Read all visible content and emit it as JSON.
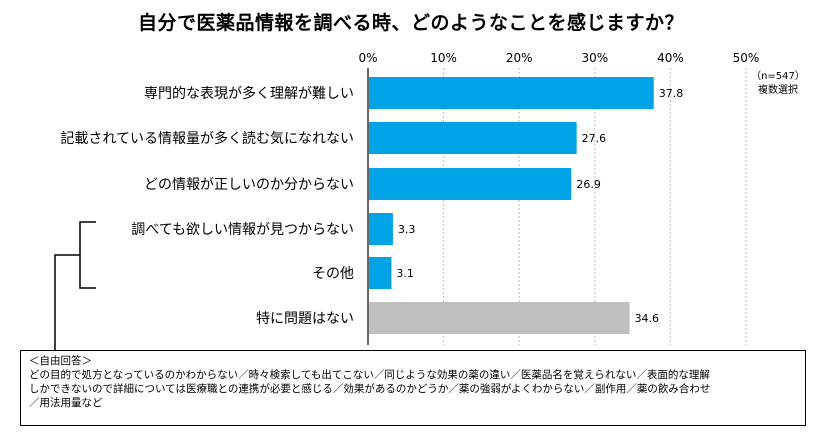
{
  "chart_data": {
    "type": "bar",
    "orientation": "horizontal",
    "title": "自分で医薬品情報を調べる時、どのようなことを感じますか？",
    "categories": [
      "専門的な表現が多く理解が難しい",
      "記載されている情報量が多く読む気になれない",
      "どの情報が正しいのか分からない",
      "調べても欲しい情報が見つからない",
      "その他",
      "特に問題はない"
    ],
    "values": [
      37.8,
      27.6,
      26.9,
      3.3,
      3.1,
      34.6
    ],
    "value_labels": [
      "37.8",
      "27.6",
      "26.9",
      "3.3",
      "3.1",
      "34.6"
    ],
    "bar_colors": [
      "#00a3e6",
      "#00a3e6",
      "#00a3e6",
      "#00a3e6",
      "#00a3e6",
      "#bfbfbf"
    ],
    "xlim": [
      0,
      50
    ],
    "ticks": [
      0,
      10,
      20,
      30,
      40,
      50
    ],
    "tick_labels": [
      "0%",
      "10%",
      "20%",
      "30%",
      "40%",
      "50%"
    ],
    "grid": true,
    "note": [
      "（n=547）",
      "複数選択"
    ]
  },
  "free_answers": {
    "heading": "＜自由回答＞",
    "lines": [
      "どの目的で処方となっているのかわからない／時々検索しても出てこない／同じような効果の薬の違い／医薬品名を覚えられない／表面的な理解",
      "しかできないので詳細については医療職との連携が必要と感じる／効果があるのかどうか／薬の強弱がよくわからない／副作用／薬の飲み合わせ",
      "／用法用量など"
    ]
  }
}
